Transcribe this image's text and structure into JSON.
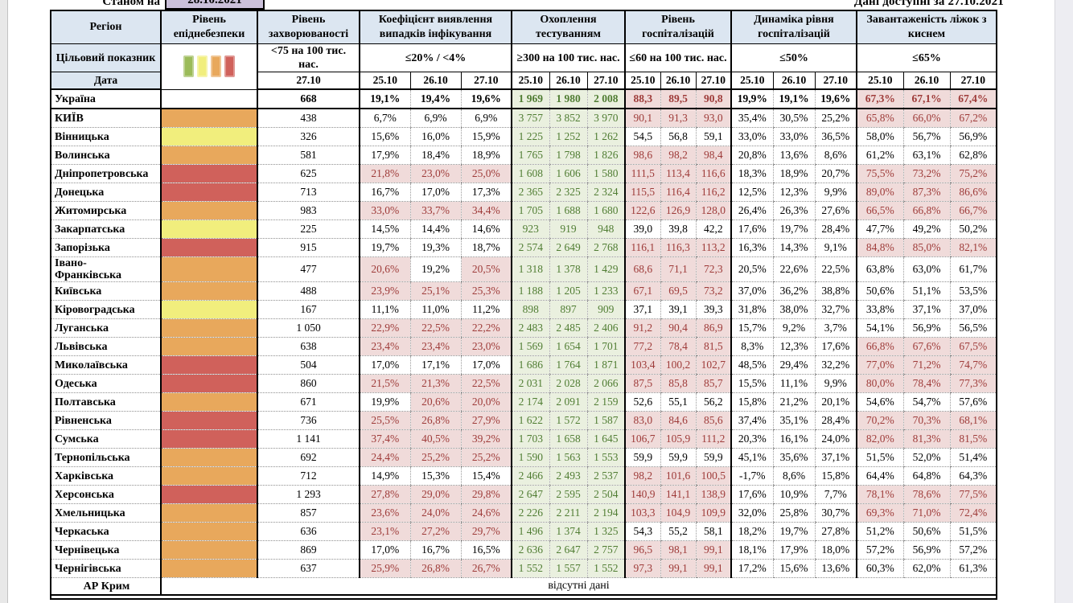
{
  "topbar": {
    "as_of_label": "Станом на",
    "as_of_date": "28.10.2021",
    "available": "Дані доступні за 27.10.2021"
  },
  "header": {
    "region": "Регіон",
    "danger": "Рівень епіднебезпеки",
    "incidence": "Рівень захворюваності",
    "detection": "Коефіцієнт виявлення випадків інфікування",
    "testing": "Охоплення тестуванням",
    "hosp": "Рівень госпіталізацій",
    "dyn": "Динаміка рівня госпіталізацій",
    "oxygen": "Завантаженість ліжок з киснем"
  },
  "targets": {
    "label": "Цільовий показник",
    "incidence": "<75 на 100 тис. нас.",
    "detection": "≤20% / <4%",
    "testing": "≥300 на 100 тис. нас.",
    "hosp": "≤60 на 100 тис. нас.",
    "dyn": "≤50%",
    "oxygen": "≤65%"
  },
  "dates": {
    "label": "Дата",
    "incidence": "27.10",
    "cols": [
      "25.10",
      "26.10",
      "27.10"
    ]
  },
  "legend": {
    "colors": [
      "#9BBB59",
      "#F1EE7D",
      "#E8A85C",
      "#D0615B"
    ]
  },
  "colors": {
    "danger": {
      "green": "#9BBB59",
      "yellow": "#F1EE7D",
      "orange": "#E8A85C",
      "red": "#D0615B"
    },
    "header_bg": "#DCE6F1",
    "date_bg": "#CBC0DA",
    "pink_bg": "#F0DBDA",
    "red_text": "#9E3B39",
    "green_bg": "#EAF0DF",
    "green_text": "#507D33"
  },
  "rows": [
    {
      "region": "Україна",
      "danger": "none",
      "bold": true,
      "incidence": "668",
      "det": [
        "19,1%",
        "19,4%",
        "19,6%"
      ],
      "det_alert": [
        false,
        false,
        false
      ],
      "test": [
        "1 969",
        "1 980",
        "2 008"
      ],
      "hosp": [
        "88,3",
        "89,5",
        "90,8"
      ],
      "hosp_alert": true,
      "dyn": [
        "19,9%",
        "19,1%",
        "19,6%"
      ],
      "oxy": [
        "67,3%",
        "67,1%",
        "67,4%"
      ],
      "oxy_alert": true
    },
    {
      "region": "КИЇВ",
      "danger": "orange",
      "incidence": "438",
      "det": [
        "6,7%",
        "6,9%",
        "6,9%"
      ],
      "det_alert": [
        false,
        false,
        false
      ],
      "test": [
        "3 757",
        "3 852",
        "3 970"
      ],
      "hosp": [
        "90,1",
        "91,3",
        "93,0"
      ],
      "hosp_alert": true,
      "dyn": [
        "35,4%",
        "30,5%",
        "25,2%"
      ],
      "oxy": [
        "65,8%",
        "66,0%",
        "67,2%"
      ],
      "oxy_alert": true
    },
    {
      "region": "Вінницька",
      "danger": "yellow",
      "incidence": "326",
      "det": [
        "15,6%",
        "16,0%",
        "15,9%"
      ],
      "det_alert": [
        false,
        false,
        false
      ],
      "test": [
        "1 225",
        "1 252",
        "1 262"
      ],
      "hosp": [
        "54,5",
        "56,8",
        "59,1"
      ],
      "hosp_alert": false,
      "dyn": [
        "33,0%",
        "33,0%",
        "36,5%"
      ],
      "oxy": [
        "58,0%",
        "56,7%",
        "56,9%"
      ],
      "oxy_alert": false
    },
    {
      "region": "Волинська",
      "danger": "orange",
      "incidence": "581",
      "det": [
        "17,9%",
        "18,4%",
        "18,9%"
      ],
      "det_alert": [
        false,
        false,
        false
      ],
      "test": [
        "1 765",
        "1 798",
        "1 826"
      ],
      "hosp": [
        "98,6",
        "98,2",
        "98,4"
      ],
      "hosp_alert": true,
      "dyn": [
        "20,8%",
        "13,6%",
        "8,6%"
      ],
      "oxy": [
        "61,2%",
        "63,1%",
        "62,8%"
      ],
      "oxy_alert": false
    },
    {
      "region": "Дніпропетровська",
      "danger": "red",
      "incidence": "625",
      "det": [
        "21,8%",
        "23,0%",
        "25,0%"
      ],
      "det_alert": [
        true,
        true,
        true
      ],
      "test": [
        "1 608",
        "1 606",
        "1 580"
      ],
      "hosp": [
        "111,5",
        "113,4",
        "116,6"
      ],
      "hosp_alert": true,
      "dyn": [
        "18,3%",
        "18,9%",
        "20,7%"
      ],
      "oxy": [
        "75,5%",
        "73,2%",
        "75,2%"
      ],
      "oxy_alert": true
    },
    {
      "region": "Донецька",
      "danger": "red",
      "incidence": "713",
      "det": [
        "16,7%",
        "17,0%",
        "17,3%"
      ],
      "det_alert": [
        false,
        false,
        false
      ],
      "test": [
        "2 365",
        "2 325",
        "2 324"
      ],
      "hosp": [
        "115,5",
        "116,4",
        "116,2"
      ],
      "hosp_alert": true,
      "dyn": [
        "12,5%",
        "12,3%",
        "9,9%"
      ],
      "oxy": [
        "89,0%",
        "87,3%",
        "86,6%"
      ],
      "oxy_alert": true
    },
    {
      "region": "Житомирська",
      "danger": "orange",
      "incidence": "983",
      "det": [
        "33,0%",
        "33,7%",
        "34,4%"
      ],
      "det_alert": [
        true,
        true,
        true
      ],
      "test": [
        "1 705",
        "1 688",
        "1 680"
      ],
      "hosp": [
        "122,6",
        "126,9",
        "128,0"
      ],
      "hosp_alert": true,
      "dyn": [
        "26,4%",
        "26,3%",
        "27,6%"
      ],
      "oxy": [
        "66,5%",
        "66,8%",
        "66,7%"
      ],
      "oxy_alert": true
    },
    {
      "region": "Закарпатська",
      "danger": "yellow",
      "incidence": "225",
      "det": [
        "14,5%",
        "14,4%",
        "14,6%"
      ],
      "det_alert": [
        false,
        false,
        false
      ],
      "test": [
        "923",
        "919",
        "948"
      ],
      "hosp": [
        "39,0",
        "39,8",
        "42,2"
      ],
      "hosp_alert": false,
      "dyn": [
        "17,6%",
        "19,7%",
        "28,4%"
      ],
      "oxy": [
        "47,7%",
        "49,2%",
        "50,2%"
      ],
      "oxy_alert": false
    },
    {
      "region": "Запорізька",
      "danger": "red",
      "incidence": "915",
      "det": [
        "19,7%",
        "19,3%",
        "18,7%"
      ],
      "det_alert": [
        false,
        false,
        false
      ],
      "test": [
        "2 574",
        "2 649",
        "2 768"
      ],
      "hosp": [
        "116,1",
        "116,3",
        "113,2"
      ],
      "hosp_alert": true,
      "dyn": [
        "16,3%",
        "14,3%",
        "9,1%"
      ],
      "oxy": [
        "84,8%",
        "85,0%",
        "82,1%"
      ],
      "oxy_alert": true
    },
    {
      "region": "Івано-\nФранківська",
      "danger": "orange",
      "incidence": "477",
      "det": [
        "20,6%",
        "19,2%",
        "20,5%"
      ],
      "det_alert": [
        true,
        false,
        true
      ],
      "test": [
        "1 318",
        "1 378",
        "1 429"
      ],
      "hosp": [
        "68,6",
        "71,1",
        "72,3"
      ],
      "hosp_alert": true,
      "dyn": [
        "20,5%",
        "22,6%",
        "22,5%"
      ],
      "oxy": [
        "63,8%",
        "63,0%",
        "61,7%"
      ],
      "oxy_alert": false
    },
    {
      "region": "Київська",
      "danger": "orange",
      "incidence": "488",
      "det": [
        "23,9%",
        "25,1%",
        "25,3%"
      ],
      "det_alert": [
        true,
        true,
        true
      ],
      "test": [
        "1 188",
        "1 205",
        "1 233"
      ],
      "hosp": [
        "67,1",
        "69,5",
        "73,2"
      ],
      "hosp_alert": true,
      "dyn": [
        "37,0%",
        "36,2%",
        "38,8%"
      ],
      "oxy": [
        "50,6%",
        "51,1%",
        "53,5%"
      ],
      "oxy_alert": false
    },
    {
      "region": "Кіровоградська",
      "danger": "yellow",
      "incidence": "167",
      "det": [
        "11,1%",
        "11,0%",
        "11,2%"
      ],
      "det_alert": [
        false,
        false,
        false
      ],
      "test": [
        "898",
        "897",
        "909"
      ],
      "hosp": [
        "37,1",
        "39,1",
        "39,3"
      ],
      "hosp_alert": false,
      "dyn": [
        "31,8%",
        "38,0%",
        "32,7%"
      ],
      "oxy": [
        "33,8%",
        "37,1%",
        "37,0%"
      ],
      "oxy_alert": false
    },
    {
      "region": "Луганська",
      "danger": "orange",
      "incidence": "1 050",
      "det": [
        "22,9%",
        "22,5%",
        "22,2%"
      ],
      "det_alert": [
        true,
        true,
        true
      ],
      "test": [
        "2 483",
        "2 485",
        "2 406"
      ],
      "hosp": [
        "91,2",
        "90,4",
        "86,9"
      ],
      "hosp_alert": true,
      "dyn": [
        "15,7%",
        "9,2%",
        "3,7%"
      ],
      "oxy": [
        "54,1%",
        "56,9%",
        "56,5%"
      ],
      "oxy_alert": false
    },
    {
      "region": "Львівська",
      "danger": "orange",
      "incidence": "638",
      "det": [
        "23,4%",
        "23,4%",
        "23,0%"
      ],
      "det_alert": [
        true,
        true,
        true
      ],
      "test": [
        "1 569",
        "1 654",
        "1 701"
      ],
      "hosp": [
        "77,2",
        "78,4",
        "81,5"
      ],
      "hosp_alert": true,
      "dyn": [
        "8,3%",
        "12,3%",
        "17,6%"
      ],
      "oxy": [
        "66,8%",
        "67,6%",
        "67,5%"
      ],
      "oxy_alert": true
    },
    {
      "region": "Миколаївська",
      "danger": "red",
      "incidence": "504",
      "det": [
        "17,0%",
        "17,1%",
        "17,0%"
      ],
      "det_alert": [
        false,
        false,
        false
      ],
      "test": [
        "1 686",
        "1 764",
        "1 871"
      ],
      "hosp": [
        "103,4",
        "100,2",
        "102,7"
      ],
      "hosp_alert": true,
      "dyn": [
        "48,5%",
        "29,4%",
        "32,2%"
      ],
      "oxy": [
        "77,0%",
        "71,2%",
        "74,7%"
      ],
      "oxy_alert": true
    },
    {
      "region": "Одеська",
      "danger": "red",
      "incidence": "860",
      "det": [
        "21,5%",
        "21,3%",
        "22,5%"
      ],
      "det_alert": [
        true,
        true,
        true
      ],
      "test": [
        "2 031",
        "2 028",
        "2 066"
      ],
      "hosp": [
        "87,5",
        "85,8",
        "85,7"
      ],
      "hosp_alert": true,
      "dyn": [
        "15,5%",
        "11,1%",
        "9,9%"
      ],
      "oxy": [
        "80,0%",
        "78,4%",
        "77,3%"
      ],
      "oxy_alert": true
    },
    {
      "region": "Полтавська",
      "danger": "orange",
      "incidence": "671",
      "det": [
        "19,9%",
        "20,6%",
        "20,0%"
      ],
      "det_alert": [
        false,
        true,
        true
      ],
      "test": [
        "2 174",
        "2 091",
        "2 159"
      ],
      "hosp": [
        "52,6",
        "55,1",
        "56,2"
      ],
      "hosp_alert": false,
      "dyn": [
        "15,8%",
        "21,2%",
        "20,1%"
      ],
      "oxy": [
        "54,6%",
        "54,7%",
        "57,6%"
      ],
      "oxy_alert": false
    },
    {
      "region": "Рівненська",
      "danger": "red",
      "incidence": "736",
      "det": [
        "25,5%",
        "26,8%",
        "27,9%"
      ],
      "det_alert": [
        true,
        true,
        true
      ],
      "test": [
        "1 622",
        "1 572",
        "1 587"
      ],
      "hosp": [
        "83,0",
        "84,6",
        "85,6"
      ],
      "hosp_alert": true,
      "dyn": [
        "37,4%",
        "35,1%",
        "28,4%"
      ],
      "oxy": [
        "70,2%",
        "70,3%",
        "68,1%"
      ],
      "oxy_alert": true
    },
    {
      "region": "Сумська",
      "danger": "red",
      "incidence": "1 141",
      "det": [
        "37,4%",
        "40,5%",
        "39,2%"
      ],
      "det_alert": [
        true,
        true,
        true
      ],
      "test": [
        "1 703",
        "1 658",
        "1 645"
      ],
      "hosp": [
        "106,7",
        "105,9",
        "111,2"
      ],
      "hosp_alert": true,
      "dyn": [
        "20,3%",
        "16,1%",
        "24,0%"
      ],
      "oxy": [
        "82,0%",
        "81,3%",
        "81,5%"
      ],
      "oxy_alert": true
    },
    {
      "region": "Тернопільська",
      "danger": "orange",
      "incidence": "692",
      "det": [
        "24,4%",
        "25,2%",
        "25,2%"
      ],
      "det_alert": [
        true,
        true,
        true
      ],
      "test": [
        "1 590",
        "1 563",
        "1 553"
      ],
      "hosp": [
        "59,9",
        "59,9",
        "59,9"
      ],
      "hosp_alert": false,
      "dyn": [
        "45,1%",
        "35,6%",
        "37,1%"
      ],
      "oxy": [
        "51,5%",
        "52,0%",
        "51,4%"
      ],
      "oxy_alert": false
    },
    {
      "region": "Харківська",
      "danger": "orange",
      "incidence": "712",
      "det": [
        "14,9%",
        "15,3%",
        "15,4%"
      ],
      "det_alert": [
        false,
        false,
        false
      ],
      "test": [
        "2 466",
        "2 493",
        "2 537"
      ],
      "hosp": [
        "98,2",
        "101,6",
        "100,5"
      ],
      "hosp_alert": true,
      "dyn": [
        "-1,7%",
        "8,6%",
        "15,8%"
      ],
      "oxy": [
        "64,4%",
        "64,8%",
        "64,3%"
      ],
      "oxy_alert": false
    },
    {
      "region": "Херсонська",
      "danger": "red",
      "incidence": "1 293",
      "det": [
        "27,8%",
        "29,0%",
        "29,8%"
      ],
      "det_alert": [
        true,
        true,
        true
      ],
      "test": [
        "2 647",
        "2 595",
        "2 504"
      ],
      "hosp": [
        "140,9",
        "141,1",
        "138,9"
      ],
      "hosp_alert": true,
      "dyn": [
        "17,6%",
        "10,9%",
        "7,7%"
      ],
      "oxy": [
        "78,1%",
        "78,6%",
        "77,5%"
      ],
      "oxy_alert": true
    },
    {
      "region": "Хмельницька",
      "danger": "orange",
      "incidence": "857",
      "det": [
        "23,6%",
        "24,0%",
        "24,6%"
      ],
      "det_alert": [
        true,
        true,
        true
      ],
      "test": [
        "2 226",
        "2 211",
        "2 194"
      ],
      "hosp": [
        "103,3",
        "104,9",
        "109,9"
      ],
      "hosp_alert": true,
      "dyn": [
        "32,0%",
        "25,8%",
        "30,7%"
      ],
      "oxy": [
        "69,3%",
        "71,0%",
        "72,4%"
      ],
      "oxy_alert": true
    },
    {
      "region": "Черкаська",
      "danger": "orange",
      "incidence": "636",
      "det": [
        "23,1%",
        "27,2%",
        "29,7%"
      ],
      "det_alert": [
        true,
        true,
        true
      ],
      "test": [
        "1 496",
        "1 374",
        "1 325"
      ],
      "hosp": [
        "54,3",
        "55,2",
        "58,1"
      ],
      "hosp_alert": false,
      "dyn": [
        "18,2%",
        "19,7%",
        "27,8%"
      ],
      "oxy": [
        "51,2%",
        "50,6%",
        "51,5%"
      ],
      "oxy_alert": false
    },
    {
      "region": "Чернівецька",
      "danger": "orange",
      "incidence": "869",
      "det": [
        "17,0%",
        "16,7%",
        "16,5%"
      ],
      "det_alert": [
        false,
        false,
        false
      ],
      "test": [
        "2 636",
        "2 647",
        "2 757"
      ],
      "hosp": [
        "96,5",
        "98,1",
        "99,1"
      ],
      "hosp_alert": true,
      "dyn": [
        "18,1%",
        "17,9%",
        "18,0%"
      ],
      "oxy": [
        "57,2%",
        "56,9%",
        "57,2%"
      ],
      "oxy_alert": false
    },
    {
      "region": "Чернігівська",
      "danger": "orange",
      "incidence": "637",
      "det": [
        "25,9%",
        "26,8%",
        "26,7%"
      ],
      "det_alert": [
        true,
        true,
        true
      ],
      "test": [
        "1 552",
        "1 557",
        "1 552"
      ],
      "hosp": [
        "97,3",
        "99,1",
        "99,1"
      ],
      "hosp_alert": true,
      "dyn": [
        "17,2%",
        "15,6%",
        "13,6%"
      ],
      "oxy": [
        "60,3%",
        "62,0%",
        "61,3%"
      ],
      "oxy_alert": false
    }
  ],
  "no_data": {
    "region": "АР Крим",
    "text": "відсутні дані"
  }
}
